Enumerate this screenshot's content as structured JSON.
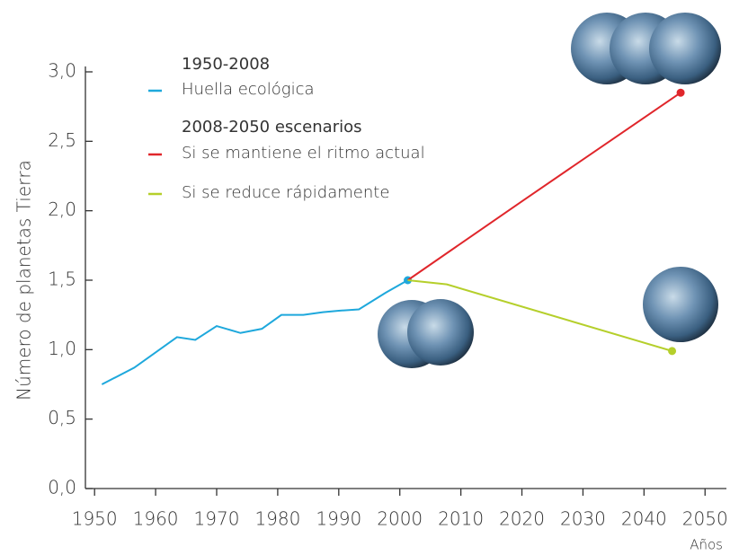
{
  "chart_data": {
    "type": "line",
    "y_label": "Número de planetas Tierra",
    "x_label": "Años",
    "legend_headings": [
      "1950-2008",
      "2008-2050 escenarios"
    ],
    "series": [
      {
        "name": "Huella ecológica",
        "color": "#1ea8dc",
        "x": [
          1951.2,
          1956.5,
          1963.5,
          1966.5,
          1970,
          1973.9,
          1977.4,
          1980.6,
          1984.2,
          1987.4,
          1990,
          1993.3,
          1997.7,
          2001.3
        ],
        "values": [
          0.75,
          0.87,
          1.09,
          1.07,
          1.17,
          1.12,
          1.15,
          1.25,
          1.25,
          1.27,
          1.28,
          1.29,
          1.41,
          1.5
        ]
      },
      {
        "name": "Si se mantiene el ritmo actual",
        "color": "#e0262b",
        "x": [
          2001.3,
          2020.4,
          2046
        ],
        "values": [
          1.5,
          2.08,
          2.85
        ]
      },
      {
        "name": "Si se reduce rápidamente",
        "color": "#b5cf2b",
        "x": [
          2001.3,
          2007.7,
          2044.6
        ],
        "values": [
          1.5,
          1.47,
          0.99
        ]
      }
    ],
    "xlim": [
      1948.5,
      2053.5
    ],
    "xticks": [
      1950,
      1960,
      1970,
      1980,
      1990,
      2000,
      2010,
      2020,
      2030,
      2040,
      2050
    ],
    "ylim": [
      0,
      3.0
    ],
    "yticks": [
      {
        "value": 0,
        "label": "0,0"
      },
      {
        "value": 0.5,
        "label": "0,5"
      },
      {
        "value": 1.0,
        "label": "1,0"
      },
      {
        "value": 1.5,
        "label": "1,5"
      },
      {
        "value": 2.0,
        "label": "2,0"
      },
      {
        "value": 2.5,
        "label": "2,5"
      },
      {
        "value": 3.0,
        "label": "3,0"
      }
    ]
  }
}
